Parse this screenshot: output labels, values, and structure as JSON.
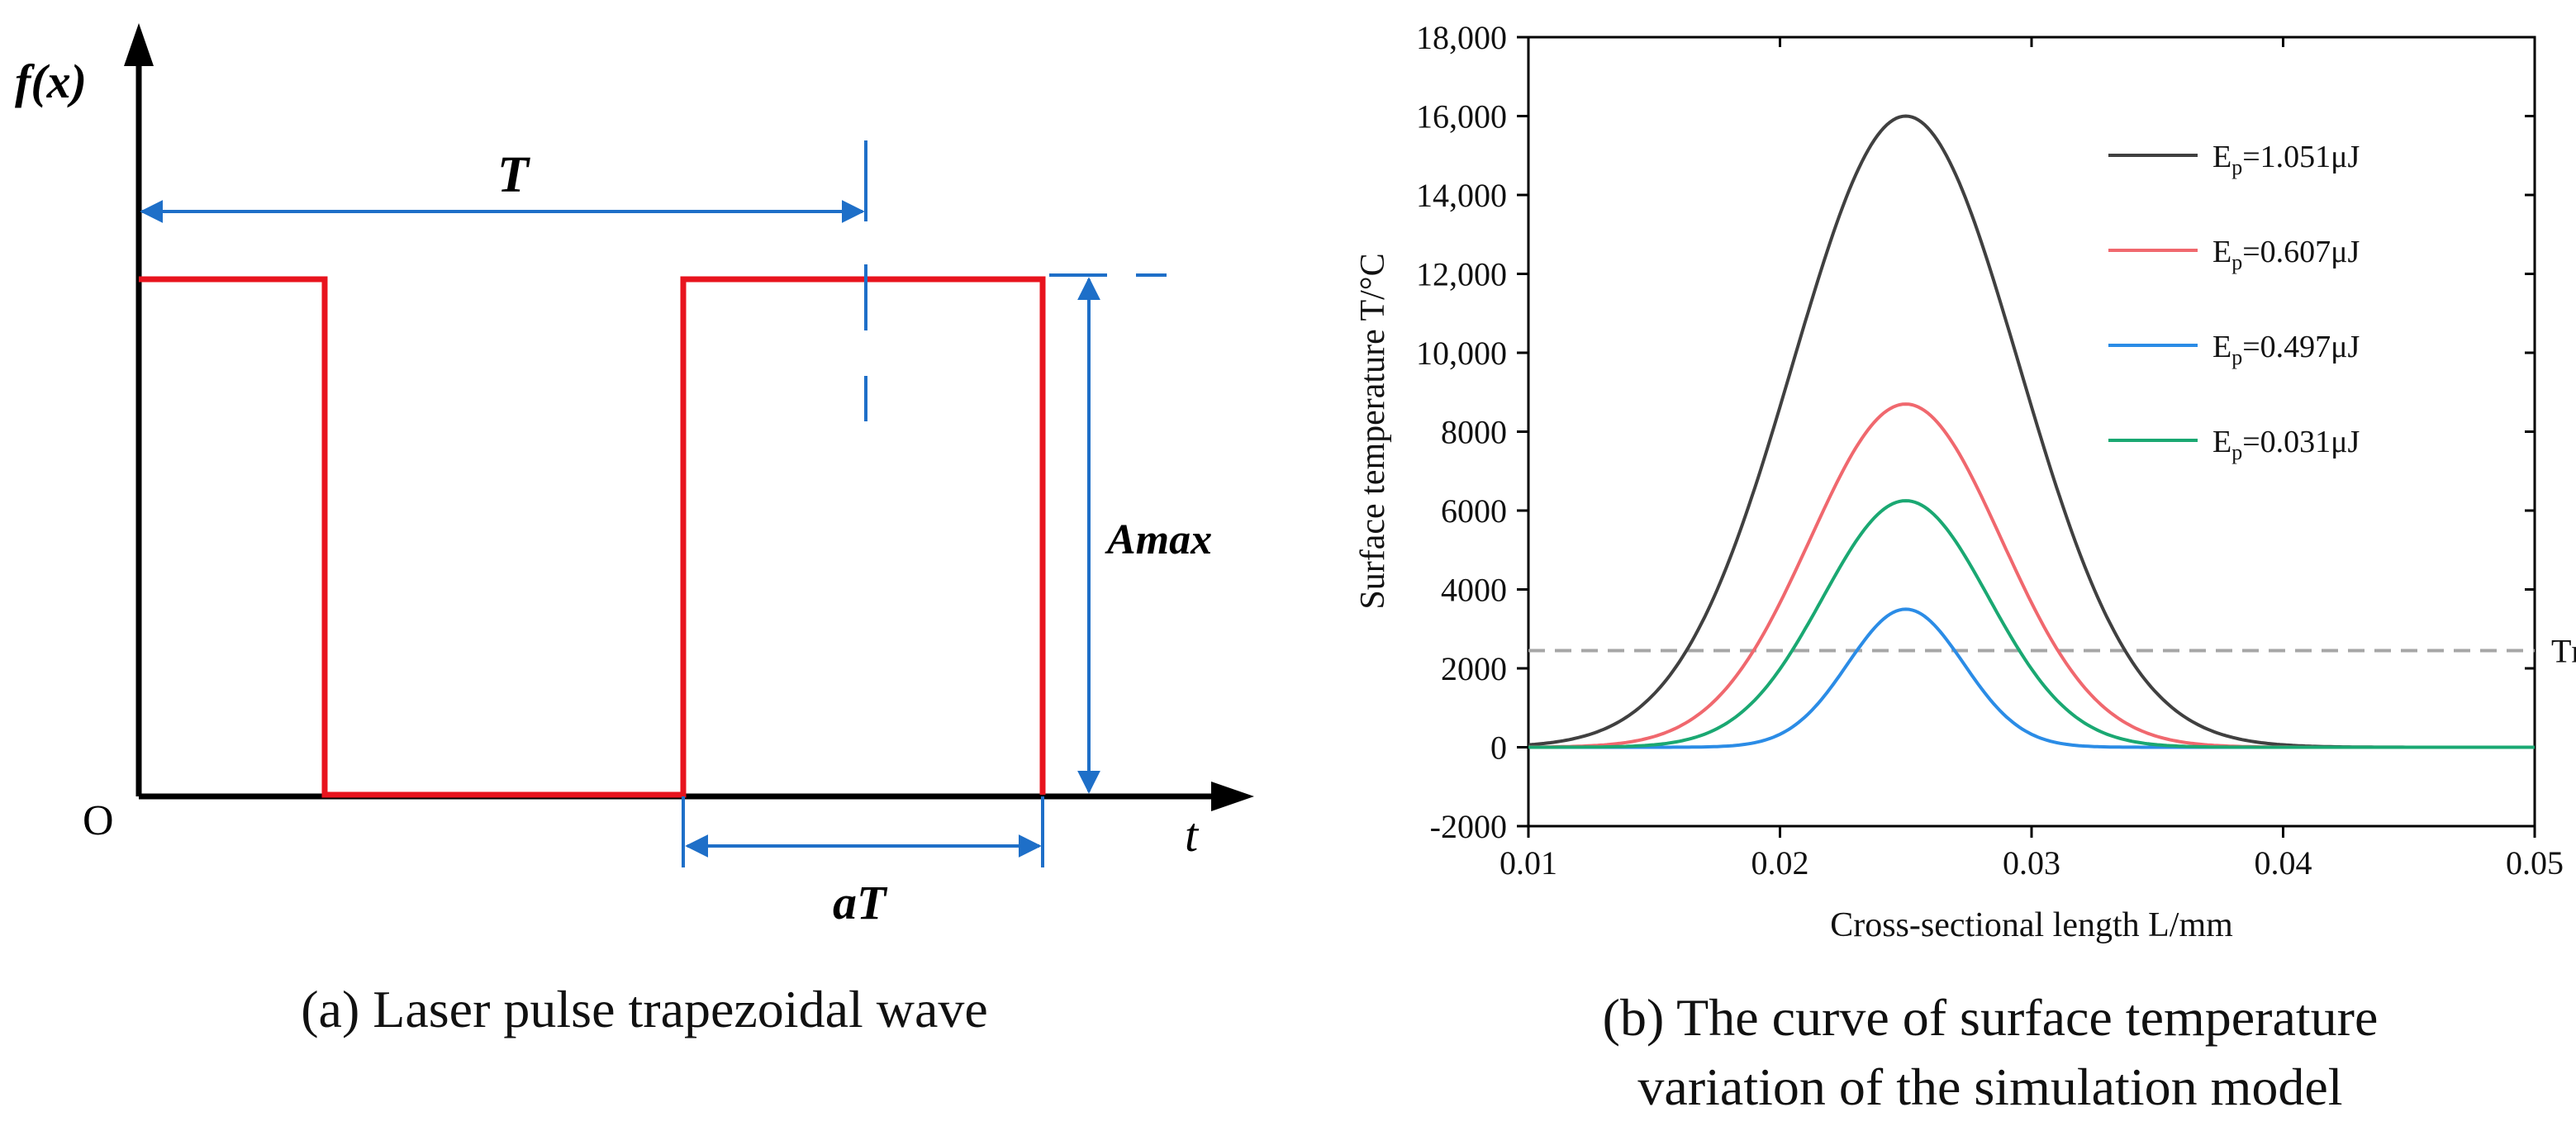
{
  "panel_a": {
    "y_axis_label": "f(x)",
    "x_axis_label": "t",
    "origin_label": "O",
    "period_label": "T",
    "amplitude_label": "Amax",
    "duty_label": "aT",
    "caption": "(a) Laser pulse trapezoidal wave",
    "colors": {
      "signal": "#e8141e",
      "dimension": "#1e6fc8",
      "axis": "#000000"
    }
  },
  "panel_b": {
    "caption_line1": "(b) The curve of surface temperature",
    "caption_line2": "variation of the simulation model",
    "reference_label": "Tm",
    "legend_entries": [
      {
        "prefix": "E",
        "sub": "p",
        "rest": "=1.051μJ"
      },
      {
        "prefix": "E",
        "sub": "p",
        "rest": "=0.607μJ"
      },
      {
        "prefix": "E",
        "sub": "p",
        "rest": "=0.497μJ"
      },
      {
        "prefix": "E",
        "sub": "p",
        "rest": "=0.031μJ"
      }
    ]
  },
  "chart_data": {
    "type": "line",
    "title": "",
    "xlabel": "Cross-sectional length L/mm",
    "ylabel": "Surface temperature  T/°C",
    "xlim": [
      0.01,
      0.05
    ],
    "ylim": [
      -2000,
      18000
    ],
    "x_ticks": [
      "0.01",
      "0.02",
      "0.03",
      "0.04",
      "0.05"
    ],
    "y_ticks": [
      "-2000",
      "0",
      "2000",
      "4000",
      "6000",
      "8000",
      "10,000",
      "12,000",
      "14,000",
      "16,000",
      "18,000"
    ],
    "reference_line": {
      "label": "Tm",
      "y": 2450,
      "style": "dashed",
      "color": "#a6a6a6"
    },
    "legend_position": "top-right",
    "series": [
      {
        "name": "Ep=1.051μJ",
        "color": "#404040",
        "peak_x": 0.025,
        "peak_y": 16000,
        "width": 0.0045,
        "baseline": 0
      },
      {
        "name": "Ep=0.607μJ",
        "color": "#f0686e",
        "peak_x": 0.025,
        "peak_y": 8700,
        "width": 0.0038,
        "baseline": 0
      },
      {
        "name": "Ep=0.497μJ",
        "color": "#2b8ce6",
        "peak_x": 0.025,
        "peak_y": 3500,
        "width": 0.0023,
        "baseline": 0
      },
      {
        "name": "Ep=0.031μJ",
        "color": "#1aa872",
        "peak_x": 0.025,
        "peak_y": 6250,
        "width": 0.0033,
        "baseline": 0
      }
    ]
  }
}
